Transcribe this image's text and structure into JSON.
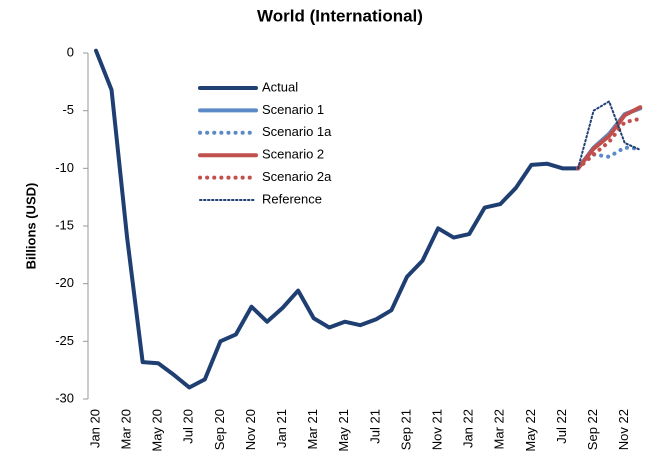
{
  "chart_data": {
    "type": "line",
    "title": "World (International)",
    "y_label": "Billions (USD)",
    "categories": [
      "Jan 20",
      null,
      "Mar 20",
      null,
      "May 20",
      null,
      "Jul 20",
      null,
      "Sep 20",
      null,
      "Nov 20",
      null,
      "Jan 21",
      null,
      "Mar 21",
      null,
      "May 21",
      null,
      "Jul 21",
      null,
      "Sep 21",
      null,
      "Nov 21",
      null,
      "Jan 22",
      null,
      "Mar 22",
      null,
      "May 22",
      null,
      "Jul 22",
      null,
      "Sep 22",
      null,
      "Nov 22",
      null
    ],
    "ylim": [
      -30,
      0
    ],
    "yticks": [
      0,
      -5,
      -10,
      -15,
      -20,
      -25,
      -30
    ],
    "grid": false,
    "series": [
      {
        "name": "Actual",
        "color": "#1f3f73",
        "style": "solid",
        "width": 4,
        "values": [
          0.2,
          -3.2,
          -16,
          -26.8,
          -26.9,
          -27.9,
          -29.0,
          -28.3,
          -25.0,
          -24.4,
          -22.0,
          -23.3,
          -22.1,
          -20.6,
          -23.0,
          -23.8,
          -23.3,
          -23.6,
          -23.1,
          -22.3,
          -19.4,
          -18.0,
          -15.2,
          -16.0,
          -15.7,
          -13.4,
          -13.1,
          -11.7,
          -9.7,
          -9.6,
          -10.0,
          -10.0,
          null,
          null,
          null,
          null
        ]
      },
      {
        "name": "Scenario 1",
        "color": "#5b8ac6",
        "style": "solid",
        "width": 4,
        "values": [
          null,
          null,
          null,
          null,
          null,
          null,
          null,
          null,
          null,
          null,
          null,
          null,
          null,
          null,
          null,
          null,
          null,
          null,
          null,
          null,
          null,
          null,
          null,
          null,
          null,
          null,
          null,
          null,
          null,
          null,
          null,
          -10.0,
          -8.2,
          -7.0,
          -5.3,
          -4.8
        ]
      },
      {
        "name": "Scenario 1a",
        "color": "#5b8ac6",
        "style": "dotted",
        "width": 4,
        "values": [
          null,
          null,
          null,
          null,
          null,
          null,
          null,
          null,
          null,
          null,
          null,
          null,
          null,
          null,
          null,
          null,
          null,
          null,
          null,
          null,
          null,
          null,
          null,
          null,
          null,
          null,
          null,
          null,
          null,
          null,
          null,
          -10.0,
          -8.8,
          -9.0,
          -8.2,
          -8.3
        ]
      },
      {
        "name": "Scenario 2",
        "color": "#c0504d",
        "style": "solid",
        "width": 4,
        "values": [
          null,
          null,
          null,
          null,
          null,
          null,
          null,
          null,
          null,
          null,
          null,
          null,
          null,
          null,
          null,
          null,
          null,
          null,
          null,
          null,
          null,
          null,
          null,
          null,
          null,
          null,
          null,
          null,
          null,
          null,
          null,
          -10.0,
          -8.3,
          -7.2,
          -5.4,
          -4.7
        ]
      },
      {
        "name": "Scenario 2a",
        "color": "#c0504d",
        "style": "dotted",
        "width": 4,
        "values": [
          null,
          null,
          null,
          null,
          null,
          null,
          null,
          null,
          null,
          null,
          null,
          null,
          null,
          null,
          null,
          null,
          null,
          null,
          null,
          null,
          null,
          null,
          null,
          null,
          null,
          null,
          null,
          null,
          null,
          null,
          null,
          -10.0,
          -8.8,
          -7.7,
          -6.0,
          -5.7
        ]
      },
      {
        "name": "Reference",
        "color": "#1f3f73",
        "style": "dotted",
        "width": 2,
        "values": [
          null,
          null,
          null,
          null,
          null,
          null,
          null,
          null,
          null,
          null,
          null,
          null,
          null,
          null,
          null,
          null,
          null,
          null,
          null,
          null,
          null,
          null,
          null,
          null,
          null,
          null,
          null,
          null,
          null,
          null,
          null,
          -10.0,
          -5.0,
          -4.2,
          -7.8,
          -8.4
        ]
      }
    ]
  }
}
